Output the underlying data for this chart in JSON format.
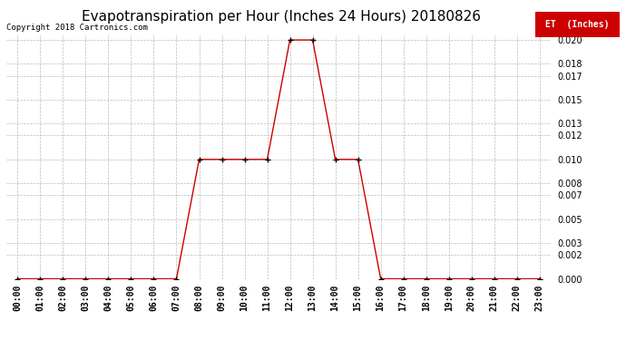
{
  "title": "Evapotranspiration per Hour (Inches 24 Hours) 20180826",
  "copyright": "Copyright 2018 Cartronics.com",
  "legend_label": "ET  (Inches)",
  "legend_bg": "#cc0000",
  "legend_text_color": "#ffffff",
  "line_color": "#cc0000",
  "marker_color": "#000000",
  "hours": [
    "00:00",
    "01:00",
    "02:00",
    "03:00",
    "04:00",
    "05:00",
    "06:00",
    "07:00",
    "08:00",
    "09:00",
    "10:00",
    "11:00",
    "12:00",
    "13:00",
    "14:00",
    "15:00",
    "16:00",
    "17:00",
    "18:00",
    "19:00",
    "20:00",
    "21:00",
    "22:00",
    "23:00"
  ],
  "values": [
    0.0,
    0.0,
    0.0,
    0.0,
    0.0,
    0.0,
    0.0,
    0.0,
    0.01,
    0.01,
    0.01,
    0.01,
    0.02,
    0.02,
    0.01,
    0.01,
    0.0,
    0.0,
    0.0,
    0.0,
    0.0,
    0.0,
    0.0,
    0.0
  ],
  "ylim": [
    0.0,
    0.0205
  ],
  "yticks": [
    0.0,
    0.002,
    0.003,
    0.005,
    0.007,
    0.008,
    0.01,
    0.012,
    0.013,
    0.015,
    0.017,
    0.018,
    0.02
  ],
  "background_color": "#ffffff",
  "grid_color": "#bbbbbb",
  "title_fontsize": 11,
  "tick_fontsize": 7,
  "copyright_fontsize": 6.5
}
